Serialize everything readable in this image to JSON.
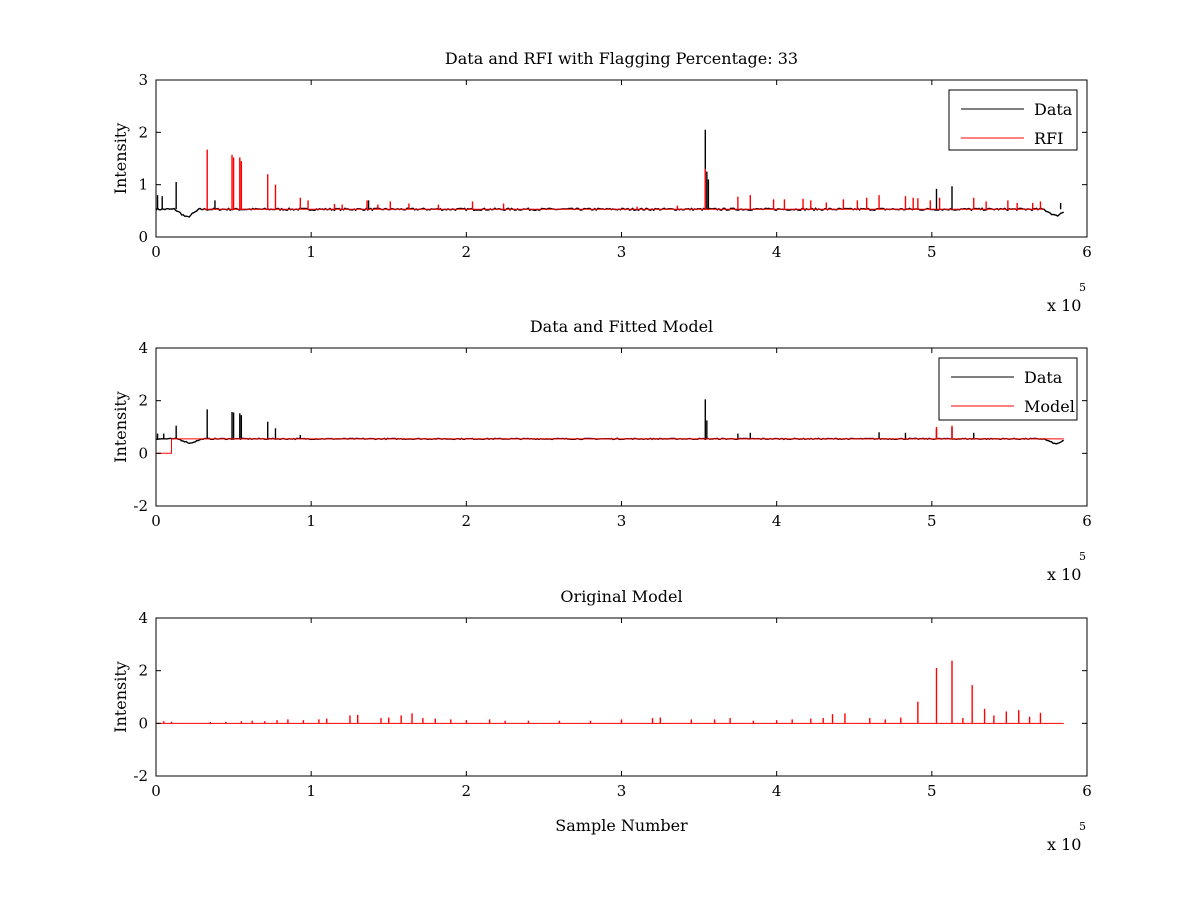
{
  "chart_data": [
    {
      "type": "line",
      "title": "Data and RFI with Flagging Percentage: 33",
      "xlabel": "",
      "ylabel": "Intensity",
      "xlim": [
        0,
        6
      ],
      "ylim": [
        0,
        3
      ],
      "xticks": [
        "0",
        "1",
        "2",
        "3",
        "4",
        "5",
        "6"
      ],
      "yticks": [
        "0",
        "1",
        "2",
        "3"
      ],
      "x_multiplier": {
        "base": "x 10",
        "exponent": "5"
      },
      "legend": {
        "position": "top-right",
        "entries": [
          "Data",
          "RFI"
        ]
      },
      "baseline": 0.53,
      "series": [
        {
          "name": "Data",
          "color": "#000000",
          "spikes": [
            [
              0.01,
              0.8
            ],
            [
              0.04,
              0.78
            ],
            [
              0.13,
              1.05
            ],
            [
              0.38,
              0.7
            ],
            [
              1.37,
              0.7
            ],
            [
              3.54,
              2.05
            ],
            [
              3.55,
              1.25
            ],
            [
              3.56,
              1.1
            ],
            [
              5.03,
              0.92
            ],
            [
              5.13,
              0.97
            ],
            [
              5.83,
              0.65
            ]
          ],
          "dips": [
            [
              0.2,
              0.37
            ],
            [
              5.8,
              0.4
            ]
          ]
        },
        {
          "name": "RFI",
          "color": "#ff0000",
          "spikes": [
            [
              0.33,
              1.67
            ],
            [
              0.49,
              1.57
            ],
            [
              0.5,
              1.52
            ],
            [
              0.54,
              1.52
            ],
            [
              0.55,
              1.45
            ],
            [
              0.72,
              1.2
            ],
            [
              0.77,
              1.0
            ],
            [
              0.93,
              0.75
            ],
            [
              0.98,
              0.7
            ],
            [
              1.15,
              0.63
            ],
            [
              1.2,
              0.62
            ],
            [
              1.36,
              0.7
            ],
            [
              1.43,
              0.62
            ],
            [
              1.51,
              0.68
            ],
            [
              1.63,
              0.64
            ],
            [
              1.82,
              0.62
            ],
            [
              2.04,
              0.68
            ],
            [
              2.24,
              0.64
            ],
            [
              3.1,
              0.58
            ],
            [
              3.36,
              0.6
            ],
            [
              3.54,
              1.3
            ],
            [
              3.75,
              0.77
            ],
            [
              3.83,
              0.8
            ],
            [
              3.98,
              0.72
            ],
            [
              4.05,
              0.72
            ],
            [
              4.17,
              0.73
            ],
            [
              4.22,
              0.7
            ],
            [
              4.32,
              0.66
            ],
            [
              4.43,
              0.72
            ],
            [
              4.52,
              0.7
            ],
            [
              4.58,
              0.75
            ],
            [
              4.66,
              0.8
            ],
            [
              4.83,
              0.78
            ],
            [
              4.88,
              0.75
            ],
            [
              4.91,
              0.74
            ],
            [
              4.99,
              0.7
            ],
            [
              5.05,
              0.75
            ],
            [
              5.27,
              0.75
            ],
            [
              5.35,
              0.68
            ],
            [
              5.49,
              0.7
            ],
            [
              5.55,
              0.65
            ],
            [
              5.65,
              0.65
            ],
            [
              5.7,
              0.68
            ]
          ],
          "range": [
            0.3,
            5.72
          ]
        }
      ]
    },
    {
      "type": "line",
      "title": "Data and Fitted Model",
      "xlabel": "",
      "ylabel": "Intensity",
      "xlim": [
        0,
        6
      ],
      "ylim": [
        -2,
        4
      ],
      "xticks": [
        "0",
        "1",
        "2",
        "3",
        "4",
        "5",
        "6"
      ],
      "yticks": [
        "-2",
        "0",
        "2",
        "4"
      ],
      "x_multiplier": {
        "base": "x 10",
        "exponent": "5"
      },
      "legend": {
        "position": "top-right",
        "entries": [
          "Data",
          "Model"
        ]
      },
      "baseline": 0.55,
      "series": [
        {
          "name": "Data",
          "color": "#000000",
          "spikes": [
            [
              0.01,
              0.75
            ],
            [
              0.05,
              0.75
            ],
            [
              0.13,
              1.05
            ],
            [
              0.33,
              1.67
            ],
            [
              0.49,
              1.57
            ],
            [
              0.5,
              1.55
            ],
            [
              0.54,
              1.52
            ],
            [
              0.55,
              1.45
            ],
            [
              0.72,
              1.2
            ],
            [
              0.77,
              0.95
            ],
            [
              0.93,
              0.7
            ],
            [
              3.54,
              2.05
            ],
            [
              3.55,
              1.25
            ],
            [
              3.75,
              0.75
            ],
            [
              3.83,
              0.78
            ],
            [
              4.66,
              0.8
            ],
            [
              4.83,
              0.78
            ],
            [
              5.03,
              0.92
            ],
            [
              5.13,
              0.97
            ],
            [
              5.27,
              0.78
            ]
          ],
          "dips": [
            [
              0.22,
              0.38
            ],
            [
              5.8,
              0.35
            ]
          ]
        },
        {
          "name": "Model",
          "color": "#ff0000",
          "step": [
            [
              0.0,
              0.0
            ],
            [
              0.1,
              0.0
            ],
            [
              0.1,
              0.55
            ],
            [
              5.85,
              0.55
            ]
          ],
          "spikes": [
            [
              5.03,
              1.0
            ],
            [
              5.13,
              1.05
            ]
          ]
        }
      ]
    },
    {
      "type": "line",
      "title": "Original Model",
      "xlabel": "Sample Number",
      "ylabel": "Intensity",
      "xlim": [
        0,
        6
      ],
      "ylim": [
        -2,
        4
      ],
      "xticks": [
        "0",
        "1",
        "2",
        "3",
        "4",
        "5",
        "6"
      ],
      "yticks": [
        "-2",
        "0",
        "2",
        "4"
      ],
      "x_multiplier": {
        "base": "x 10",
        "exponent": "5"
      },
      "legend": null,
      "baseline": 0.0,
      "series": [
        {
          "color": "#ff0000",
          "spikes": [
            [
              0.05,
              0.08
            ],
            [
              0.1,
              0.06
            ],
            [
              0.35,
              0.05
            ],
            [
              0.45,
              0.06
            ],
            [
              0.55,
              0.08
            ],
            [
              0.62,
              0.1
            ],
            [
              0.7,
              0.08
            ],
            [
              0.78,
              0.12
            ],
            [
              0.85,
              0.15
            ],
            [
              0.95,
              0.12
            ],
            [
              1.05,
              0.15
            ],
            [
              1.1,
              0.18
            ],
            [
              1.25,
              0.3
            ],
            [
              1.3,
              0.32
            ],
            [
              1.45,
              0.2
            ],
            [
              1.5,
              0.22
            ],
            [
              1.58,
              0.3
            ],
            [
              1.65,
              0.38
            ],
            [
              1.72,
              0.2
            ],
            [
              1.8,
              0.18
            ],
            [
              1.9,
              0.15
            ],
            [
              2.0,
              0.12
            ],
            [
              2.15,
              0.15
            ],
            [
              2.25,
              0.1
            ],
            [
              2.4,
              0.1
            ],
            [
              2.6,
              0.1
            ],
            [
              2.8,
              0.1
            ],
            [
              3.0,
              0.15
            ],
            [
              3.2,
              0.2
            ],
            [
              3.25,
              0.22
            ],
            [
              3.45,
              0.15
            ],
            [
              3.6,
              0.15
            ],
            [
              3.7,
              0.2
            ],
            [
              3.85,
              0.1
            ],
            [
              4.0,
              0.12
            ],
            [
              4.1,
              0.15
            ],
            [
              4.22,
              0.18
            ],
            [
              4.3,
              0.2
            ],
            [
              4.36,
              0.35
            ],
            [
              4.44,
              0.38
            ],
            [
              4.6,
              0.2
            ],
            [
              4.7,
              0.15
            ],
            [
              4.8,
              0.22
            ],
            [
              4.91,
              0.82
            ],
            [
              5.03,
              2.1
            ],
            [
              5.13,
              2.38
            ],
            [
              5.2,
              0.2
            ],
            [
              5.26,
              1.45
            ],
            [
              5.34,
              0.55
            ],
            [
              5.4,
              0.3
            ],
            [
              5.48,
              0.45
            ],
            [
              5.56,
              0.5
            ],
            [
              5.63,
              0.25
            ],
            [
              5.7,
              0.4
            ]
          ],
          "range": [
            0.0,
            5.85
          ]
        }
      ]
    }
  ]
}
